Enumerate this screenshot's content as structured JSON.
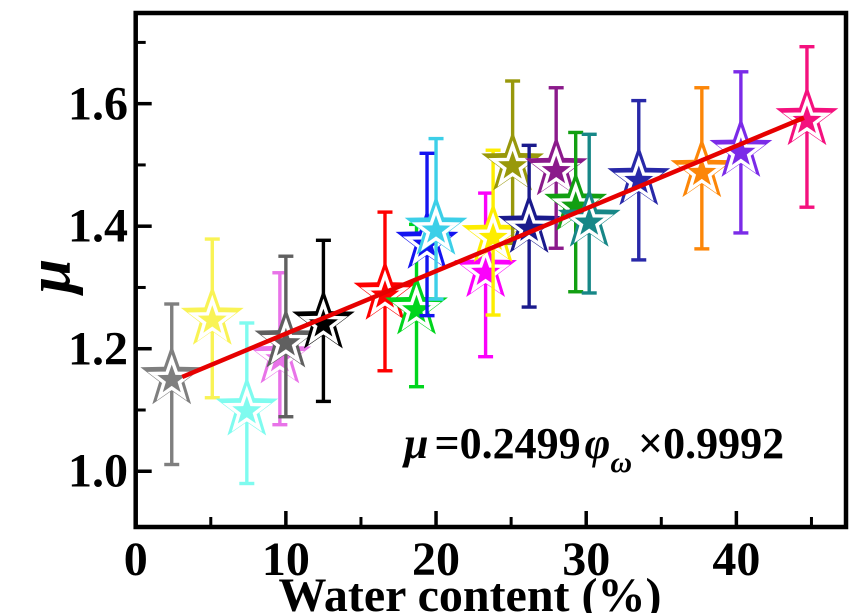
{
  "chart_data": {
    "type": "scatter",
    "title": "",
    "xlabel": "Water content (%)",
    "ylabel": "μ",
    "xlim": [
      0,
      47.3
    ],
    "ylim": [
      0.909,
      1.748
    ],
    "grid": false,
    "legend": null,
    "x_major_ticks": [
      0,
      10,
      20,
      30,
      40
    ],
    "x_minor_ticks": [
      5,
      15,
      25,
      35,
      45
    ],
    "x_tick_labels": [
      "0",
      "10",
      "20",
      "30",
      "40"
    ],
    "y_major_ticks": [
      1.0,
      1.2,
      1.4,
      1.6
    ],
    "y_minor_ticks": [
      1.1,
      1.3,
      1.5,
      1.7
    ],
    "y_tick_labels": [
      "1.0",
      "1.2",
      "1.4",
      "1.6"
    ],
    "equation": {
      "mu": "μ",
      "eq": "=",
      "slope": "0.2499",
      "phi": "φ",
      "phi_sub": "ω",
      "rest": "×0.9992"
    },
    "fit_line": {
      "color": "#E60000",
      "x1": 3.1,
      "y1": 1.154,
      "x2": 44.5,
      "y2": 1.577
    },
    "points": [
      {
        "name": "gray",
        "color": "#7F7F7F",
        "x": 2.4,
        "y": 1.153,
        "y_low": 1.011,
        "y_high": 1.273
      },
      {
        "name": "light-yellow",
        "color": "#F9F355",
        "x": 5.1,
        "y": 1.25,
        "y_low": 1.12,
        "y_high": 1.379
      },
      {
        "name": "pale-cyan",
        "color": "#7FFBEF",
        "x": 7.4,
        "y": 1.102,
        "y_low": 0.98,
        "y_high": 1.242
      },
      {
        "name": "violet",
        "color": "#E873E8",
        "x": 9.6,
        "y": 1.187,
        "y_low": 1.076,
        "y_high": 1.324
      },
      {
        "name": "dim-gray",
        "color": "#606060",
        "x": 10.0,
        "y": 1.213,
        "y_low": 1.089,
        "y_high": 1.351
      },
      {
        "name": "black",
        "color": "#000000",
        "x": 12.5,
        "y": 1.244,
        "y_low": 1.114,
        "y_high": 1.377
      },
      {
        "name": "red",
        "color": "#FE0000",
        "x": 16.6,
        "y": 1.291,
        "y_low": 1.164,
        "y_high": 1.423
      },
      {
        "name": "green",
        "color": "#00D51D",
        "x": 18.7,
        "y": 1.267,
        "y_low": 1.138,
        "y_high": 1.403
      },
      {
        "name": "blue",
        "color": "#1414F0",
        "x": 19.4,
        "y": 1.374,
        "y_low": 1.254,
        "y_high": 1.519
      },
      {
        "name": "cyan",
        "color": "#3CCFE8",
        "x": 20.0,
        "y": 1.397,
        "y_low": 1.281,
        "y_high": 1.543
      },
      {
        "name": "magenta",
        "color": "#FB02FB",
        "x": 23.3,
        "y": 1.328,
        "y_low": 1.187,
        "y_high": 1.454
      },
      {
        "name": "yellow",
        "color": "#FDED00",
        "x": 23.8,
        "y": 1.385,
        "y_low": 1.255,
        "y_high": 1.524
      },
      {
        "name": "dark-yellow",
        "color": "#98980B",
        "x": 25.1,
        "y": 1.502,
        "y_low": 1.372,
        "y_high": 1.637
      },
      {
        "name": "navy",
        "color": "#1A1A8C",
        "x": 26.2,
        "y": 1.4,
        "y_low": 1.268,
        "y_high": 1.532
      },
      {
        "name": "purple",
        "color": "#8B1A8B",
        "x": 28.0,
        "y": 1.494,
        "y_low": 1.364,
        "y_high": 1.626
      },
      {
        "name": "dark-green",
        "color": "#129F12",
        "x": 29.3,
        "y": 1.436,
        "y_low": 1.293,
        "y_high": 1.553
      },
      {
        "name": "teal",
        "color": "#178787",
        "x": 30.2,
        "y": 1.41,
        "y_low": 1.291,
        "y_high": 1.55
      },
      {
        "name": "royal-blue",
        "color": "#2828A8",
        "x": 33.5,
        "y": 1.478,
        "y_low": 1.345,
        "y_high": 1.605
      },
      {
        "name": "orange",
        "color": "#FC8608",
        "x": 37.7,
        "y": 1.491,
        "y_low": 1.363,
        "y_high": 1.626
      },
      {
        "name": "blue-violet",
        "color": "#7B2BE8",
        "x": 40.3,
        "y": 1.524,
        "y_low": 1.389,
        "y_high": 1.652
      },
      {
        "name": "deep-pink",
        "color": "#F4117E",
        "x": 44.7,
        "y": 1.576,
        "y_low": 1.431,
        "y_high": 1.693
      }
    ]
  },
  "styles": {
    "background": "#FFFFFF",
    "axis_color": "#000000",
    "text_color": "#000000"
  }
}
